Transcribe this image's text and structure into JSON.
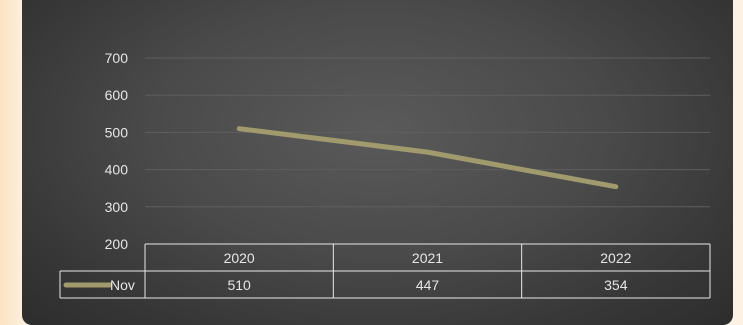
{
  "chart_data": {
    "type": "line",
    "categories": [
      "2020",
      "2021",
      "2022"
    ],
    "series": [
      {
        "name": "Nov",
        "values": [
          510,
          447,
          354
        ],
        "color": "#a09a6c"
      }
    ],
    "yticks": [
      "200",
      "300",
      "400",
      "500",
      "600",
      "700"
    ],
    "ylim": [
      200,
      700
    ],
    "grid": true,
    "data_table": true,
    "background_color": "#4a4a4a",
    "gridline_color": "#5e5e5e",
    "table_border_color": "#e8e8e8"
  }
}
